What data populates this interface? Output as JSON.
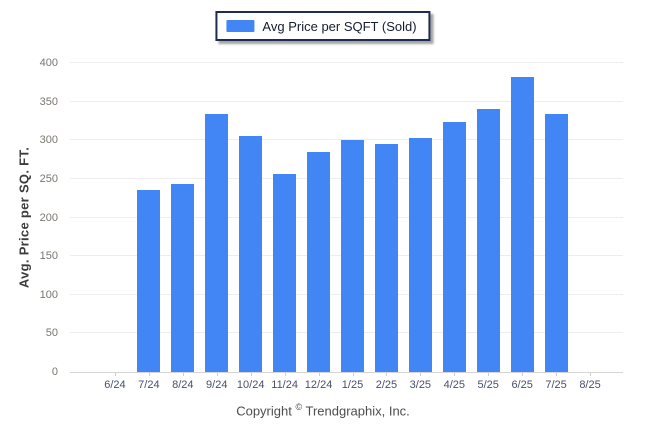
{
  "legend": {
    "label": "Avg Price per SQFT (Sold)",
    "swatch_color": "#4285f4"
  },
  "footer": {
    "prefix": "Copyright",
    "symbol": "©",
    "suffix": "Trendgraphix, Inc."
  },
  "chart_data": {
    "type": "bar",
    "title": "",
    "xlabel": "",
    "ylabel": "Avg. Price per SQ. FT.",
    "series_name": "Avg Price per SQFT (Sold)",
    "categories": [
      "6/24",
      "7/24",
      "8/24",
      "9/24",
      "10/24",
      "11/24",
      "12/24",
      "1/25",
      "2/25",
      "3/25",
      "4/25",
      "5/25",
      "6/25",
      "7/25",
      "8/25"
    ],
    "values": [
      null,
      236,
      244,
      334,
      305,
      256,
      285,
      300,
      295,
      303,
      323,
      341,
      382,
      334,
      null
    ],
    "ylim": [
      0,
      400
    ],
    "ytick_step": 50,
    "yticks": [
      0,
      50,
      100,
      150,
      200,
      250,
      300,
      350,
      400
    ],
    "bar_color": "#4285f4",
    "grid": true,
    "legend_position": "top-center"
  },
  "colors": {
    "bar": "#4285f4",
    "legend_border": "#1e2c4f",
    "gridline": "#ededed",
    "axis_line": "#d4d4d4",
    "x_tick_text": "#46506b",
    "y_tick_text": "#7a766f",
    "footer_text": "#4d4d4d"
  }
}
